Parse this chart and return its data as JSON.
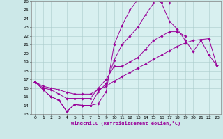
{
  "xlabel": "Windchill (Refroidissement éolien,°C)",
  "background_color": "#cce8e8",
  "plot_bg_color": "#d8f0f0",
  "line_color": "#990099",
  "xlim": [
    -0.5,
    23.5
  ],
  "ylim": [
    13,
    26
  ],
  "xticks": [
    0,
    1,
    2,
    3,
    4,
    5,
    6,
    7,
    8,
    9,
    10,
    11,
    12,
    13,
    14,
    15,
    16,
    17,
    18,
    19,
    20,
    21,
    22,
    23
  ],
  "yticks": [
    13,
    14,
    15,
    16,
    17,
    18,
    19,
    20,
    21,
    22,
    23,
    24,
    25,
    26
  ],
  "series": [
    [
      16.7,
      15.8,
      15.0,
      14.6,
      13.3,
      14.1,
      14.0,
      14.0,
      14.2,
      15.6,
      21.0,
      23.2,
      25.0,
      26.2,
      26.5,
      26.5,
      25.8,
      25.8,
      null,
      null,
      null,
      null,
      null,
      null
    ],
    [
      16.7,
      15.8,
      15.0,
      14.6,
      13.3,
      14.1,
      14.0,
      14.0,
      15.6,
      16.5,
      19.2,
      21.0,
      22.0,
      23.0,
      24.5,
      25.8,
      25.8,
      23.7,
      22.8,
      21.5,
      20.2,
      21.5,
      19.8,
      18.6
    ],
    [
      16.7,
      16.0,
      15.8,
      15.3,
      14.8,
      14.8,
      14.8,
      14.8,
      16.0,
      17.0,
      18.5,
      18.5,
      19.0,
      19.5,
      20.5,
      21.5,
      22.0,
      22.5,
      22.5,
      22.0,
      null,
      null,
      null,
      null
    ],
    [
      16.7,
      16.2,
      16.0,
      15.8,
      15.5,
      15.3,
      15.3,
      15.3,
      15.8,
      16.2,
      16.8,
      17.3,
      17.8,
      18.3,
      18.8,
      19.3,
      19.8,
      20.3,
      20.8,
      21.2,
      21.5,
      21.6,
      21.7,
      18.6
    ]
  ]
}
